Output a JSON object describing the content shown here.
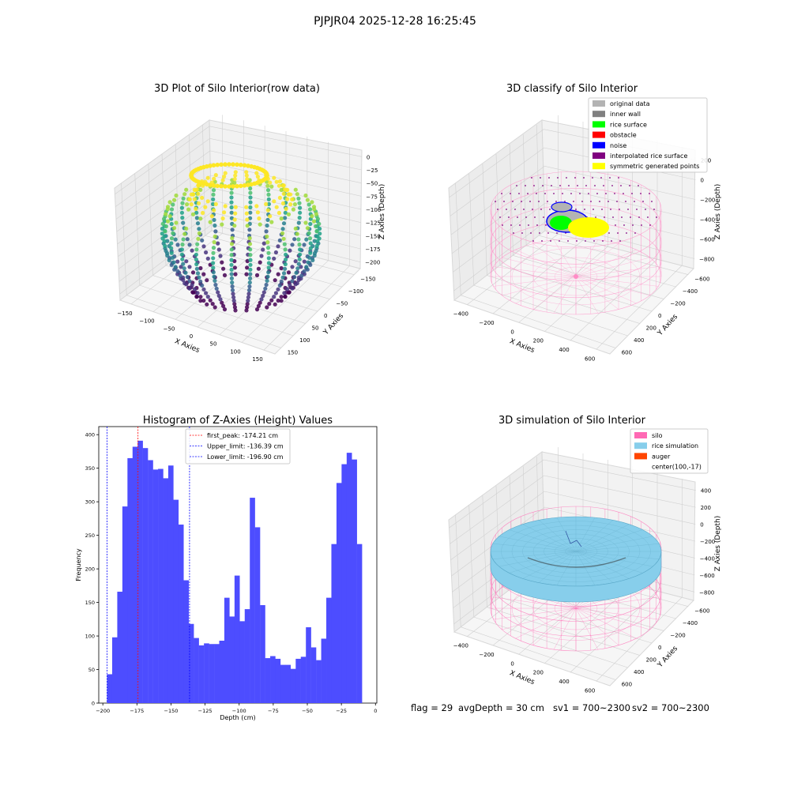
{
  "figure": {
    "suptitle": "PJPJR04 2025-12-28 16:25:45",
    "footer": {
      "flag": "flag = 29",
      "avg_depth": "avgDepth = 30 cm",
      "sv1": "sv1 = 700~2300",
      "sv2": "sv2 = 700~2300"
    }
  },
  "chart_data": [
    {
      "type": "scatter3d",
      "title": "3D Plot of Silo Interior(row data)",
      "xlabel": "X Axies",
      "ylabel": "Y Axies",
      "zlabel": "Z Axies (Depth)",
      "x_ticks": [
        "−150",
        "−100",
        "−50",
        "0",
        "50",
        "100",
        "150"
      ],
      "y_ticks": [
        "−150",
        "−100",
        "−50",
        "0",
        "50",
        "100",
        "150"
      ],
      "z_ticks": [
        "0",
        "−25",
        "−50",
        "−75",
        "−100",
        "−125",
        "−150",
        "−175",
        "−200"
      ],
      "colormap": "viridis"
    },
    {
      "type": "scatter3d",
      "title": "3D classify of Silo Interior",
      "xlabel": "X Axies",
      "ylabel": "Y Axies",
      "zlabel": "Z Axies (Depth)",
      "x_ticks": [
        "−400",
        "−200",
        "0",
        "200",
        "400",
        "600"
      ],
      "y_ticks": [
        "−600",
        "−400",
        "−200",
        "0",
        "200",
        "400",
        "600"
      ],
      "z_ticks": [
        "200",
        "0",
        "−200",
        "−400",
        "−600",
        "−800"
      ],
      "legend": [
        {
          "label": "original data",
          "color": "#b3b3b3"
        },
        {
          "label": "inner wall",
          "color": "#808080"
        },
        {
          "label": "rice surface",
          "color": "#00ff00"
        },
        {
          "label": "obstacle",
          "color": "#ff0000"
        },
        {
          "label": "noise",
          "color": "#0000ff"
        },
        {
          "label": "interpolated rice surface",
          "color": "#800080"
        },
        {
          "label": "symmetric generated points",
          "color": "#ffff00"
        }
      ]
    },
    {
      "type": "bar",
      "title": "Histogram of Z-Axies (Height) Values",
      "xlabel": "Depth (cm)",
      "ylabel": "Frequency",
      "xlim": [
        -203,
        1
      ],
      "ylim": [
        0,
        412
      ],
      "x_ticks": [
        -200,
        -175,
        -150,
        -125,
        -100,
        -75,
        -50,
        -25,
        0
      ],
      "x_tick_labels": [
        "−200",
        "−175",
        "−150",
        "−125",
        "−100",
        "−75",
        "−50",
        "−25",
        "0"
      ],
      "y_ticks": [
        0,
        50,
        100,
        150,
        200,
        250,
        300,
        350,
        400
      ],
      "bar_color": "#4d4dff",
      "bin_start": -196.9,
      "bin_width": 3.74,
      "values": [
        43,
        98,
        166,
        293,
        365,
        382,
        391,
        380,
        362,
        348,
        349,
        335,
        354,
        303,
        266,
        183,
        118,
        97,
        86,
        89,
        88,
        88,
        93,
        157,
        129,
        190,
        122,
        140,
        306,
        262,
        146,
        67,
        70,
        66,
        57,
        57,
        51,
        66,
        69,
        113,
        83,
        64,
        96,
        157,
        237,
        328,
        356,
        373,
        363,
        237
      ],
      "vlines": [
        {
          "label": "first_peak: -174.21 cm",
          "x": -174.21,
          "color": "#ff0000"
        },
        {
          "label": "Upper_limit: -136.39 cm",
          "x": -136.39,
          "color": "#0000ff"
        },
        {
          "label": "Lower_limit: -196.90 cm",
          "x": -196.9,
          "color": "#0000ff"
        }
      ]
    },
    {
      "type": "surface3d",
      "title": "3D simulation of Silo Interior",
      "xlabel": "X Axies",
      "ylabel": "Y Axies",
      "zlabel": "Z Axies (Depth)",
      "x_ticks": [
        "−400",
        "−200",
        "0",
        "200",
        "400",
        "600"
      ],
      "y_ticks": [
        "−600",
        "−400",
        "−200",
        "0",
        "200",
        "400",
        "600"
      ],
      "z_ticks": [
        "400",
        "200",
        "0",
        "−200",
        "−400",
        "−600",
        "−800"
      ],
      "legend": [
        {
          "label": "silo",
          "color": "#ff69b4"
        },
        {
          "label": "rice simulation",
          "color": "#87ceeb"
        },
        {
          "label": "auger",
          "color": "#ff4500"
        },
        {
          "label": "center(100,-17)",
          "color": ""
        }
      ]
    }
  ]
}
